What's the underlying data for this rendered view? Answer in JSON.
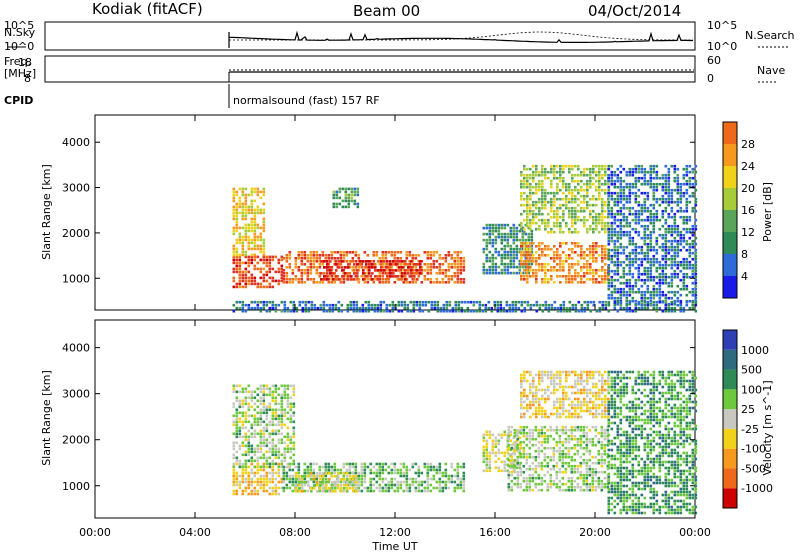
{
  "header": {
    "station": "Kodiak (fitACF)",
    "beam": "Beam 00",
    "date": "04/Oct/2014"
  },
  "top_panels": {
    "nsky": {
      "label": "N.Sky",
      "ticks": [
        "10^5",
        "10^0"
      ]
    },
    "nsearch": {
      "label": "N.Search",
      "ticks": [
        "10^5",
        "10^0"
      ]
    },
    "freq": {
      "label1": "Freq.",
      "label2": "[MHz]",
      "ticks": [
        "18",
        "8"
      ]
    },
    "nave": {
      "label": "Nave",
      "ticks": [
        "60",
        "0"
      ]
    },
    "cpid": {
      "label": "CPID",
      "mode": "normalsound (fast) 157 RF"
    }
  },
  "colors": {
    "power": [
      "#1a1ae6",
      "#2e6bd9",
      "#2e8b57",
      "#5aa55a",
      "#a7cc39",
      "#f0d21a",
      "#f59a1e",
      "#ee6a1a",
      "#e03020",
      "#cc0000"
    ],
    "velocity": [
      "#1a1ae6",
      "#2e3fb5",
      "#2e6b80",
      "#2e8b57",
      "#6ec83c",
      "#c8c8c0",
      "#f0d21a",
      "#f59a1e",
      "#ee6a1a",
      "#cc0000"
    ]
  },
  "chart_data": [
    {
      "type": "heatmap",
      "name": "power",
      "ylabel": "Slant Range [km]",
      "yticks": [
        "1000",
        "2000",
        "3000",
        "4000"
      ],
      "ylim": [
        300,
        4600
      ],
      "xlim": [
        0,
        24
      ],
      "colorbar": {
        "label": "Power [dB]",
        "ticks": [
          "4",
          "8",
          "12",
          "16",
          "20",
          "24",
          "28"
        ]
      },
      "regions": [
        {
          "x": [
            5.5,
            7.5
          ],
          "y": [
            800,
            1500
          ],
          "value": 26
        },
        {
          "x": [
            7.5,
            14.8
          ],
          "y": [
            900,
            1600
          ],
          "value": 24
        },
        {
          "x": [
            9.0,
            13.0
          ],
          "y": [
            1000,
            1400
          ],
          "value": 28
        },
        {
          "x": [
            5.5,
            6.8
          ],
          "y": [
            1500,
            3000
          ],
          "value": 18
        },
        {
          "x": [
            9.5,
            10.5
          ],
          "y": [
            2600,
            3000
          ],
          "value": 10
        },
        {
          "x": [
            15.5,
            17.5
          ],
          "y": [
            1100,
            2200
          ],
          "value": 8
        },
        {
          "x": [
            17.0,
            20.5
          ],
          "y": [
            900,
            1800
          ],
          "value": 22
        },
        {
          "x": [
            17.0,
            20.5
          ],
          "y": [
            2000,
            3500
          ],
          "value": 14
        },
        {
          "x": [
            20.5,
            24.0
          ],
          "y": [
            400,
            3500
          ],
          "value": 6
        },
        {
          "x": [
            5.5,
            24.0
          ],
          "y": [
            300,
            500
          ],
          "value": 6
        }
      ]
    },
    {
      "type": "heatmap",
      "name": "velocity",
      "ylabel": "Slant Range [km]",
      "yticks": [
        "1000",
        "2000",
        "3000",
        "4000"
      ],
      "ylim": [
        300,
        4600
      ],
      "xlim": [
        0,
        24
      ],
      "xticks": [
        "00:00",
        "04:00",
        "08:00",
        "12:00",
        "16:00",
        "20:00",
        "00:00"
      ],
      "xlabel": "Time UT",
      "colorbar": {
        "label": "Velocity [m s^-1]",
        "ticks": [
          "1000",
          "500",
          "100",
          "25",
          "-25",
          "-100",
          "-500",
          "-1000"
        ]
      },
      "regions": [
        {
          "x": [
            5.5,
            7.5
          ],
          "y": [
            800,
            1500
          ],
          "value": -400
        },
        {
          "x": [
            5.5,
            8.0
          ],
          "y": [
            1400,
            3200
          ],
          "value": 0
        },
        {
          "x": [
            7.5,
            14.8
          ],
          "y": [
            900,
            1500
          ],
          "value": 150
        },
        {
          "x": [
            8.0,
            10.5
          ],
          "y": [
            900,
            1300
          ],
          "value": -200
        },
        {
          "x": [
            15.5,
            17.0
          ],
          "y": [
            1300,
            2200
          ],
          "value": -150
        },
        {
          "x": [
            16.5,
            20.5
          ],
          "y": [
            900,
            2300
          ],
          "value": 0
        },
        {
          "x": [
            17.0,
            20.5
          ],
          "y": [
            2500,
            3500
          ],
          "value": -300
        },
        {
          "x": [
            20.5,
            24.0
          ],
          "y": [
            400,
            3500
          ],
          "value": 300
        }
      ]
    }
  ]
}
